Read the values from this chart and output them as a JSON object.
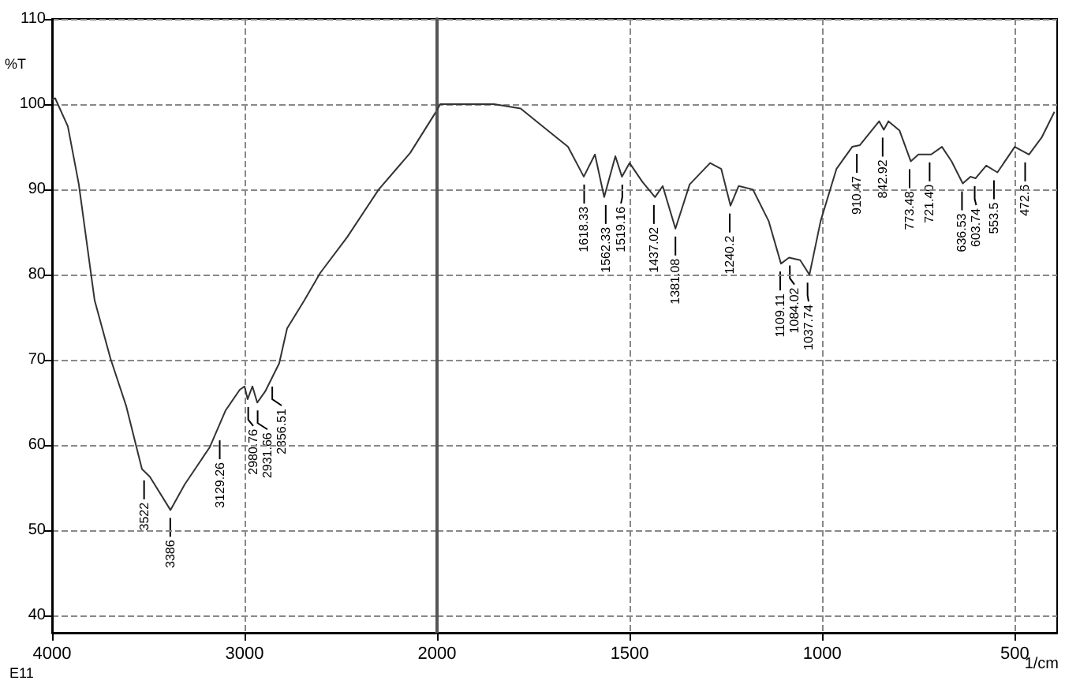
{
  "chart_data": [
    {
      "type": "line",
      "ylabel": "%T",
      "color": "#333333",
      "marker": "none",
      "grid": true,
      "x": [
        4000,
        3984,
        3918,
        3861,
        3779,
        3697,
        3615,
        3533,
        3492,
        3385,
        3311,
        3180,
        3098,
        3025,
        3000,
        2984,
        2959,
        2934,
        2893,
        2820,
        2779,
        2689,
        2607,
        2467,
        2303,
        2139,
        2000
      ],
      "values": [
        100.5,
        100.7,
        97.4,
        90.6,
        77,
        70.2,
        64.6,
        57.2,
        56.3,
        52.4,
        55.4,
        59.8,
        64.1,
        66.5,
        66.9,
        65.4,
        66.9,
        65,
        66.3,
        69.6,
        73.7,
        77,
        80.2,
        84.4,
        90,
        94.3,
        99.3
      ],
      "xlim": [
        4000,
        2000
      ],
      "xticks": [
        4000,
        3000,
        2000
      ],
      "ylim": [
        38,
        110
      ],
      "yticks": [
        40,
        50,
        60,
        70,
        80,
        90,
        100,
        110
      ],
      "annotations": [
        "E11",
        {
          "text": "3522",
          "x": 3522,
          "y": 56.8
        },
        {
          "text": "3386",
          "x": 3386,
          "y": 52.4
        },
        {
          "text": "3129.26",
          "x": 3129,
          "y": 61.5
        },
        {
          "text": "2980.76",
          "x": 2981,
          "y": 65.4
        },
        {
          "text": "2931.66",
          "x": 2932,
          "y": 65
        },
        {
          "text": "2856.51",
          "x": 2856,
          "y": 67.8
        }
      ]
    },
    {
      "type": "line",
      "xlabel": "1/cm",
      "color": "#333333",
      "marker": "none",
      "grid": true,
      "tick_labels": "x",
      "x": [
        2000,
        1992,
        1852,
        1783,
        1742,
        1660,
        1619,
        1590,
        1566,
        1537,
        1520,
        1500,
        1467,
        1434,
        1414,
        1381,
        1344,
        1291,
        1262,
        1238,
        1217,
        1180,
        1139,
        1107,
        1086,
        1057,
        1033,
        1004,
        963,
        922,
        902,
        852,
        840,
        828,
        799,
        770,
        750,
        717,
        689,
        664,
        635,
        615,
        602,
        574,
        545,
        500,
        463,
        430,
        397
      ],
      "values": [
        99.3,
        100,
        100,
        99.5,
        98,
        95,
        91.5,
        94.1,
        89.1,
        93.9,
        91.5,
        93.1,
        90.9,
        89.1,
        90.4,
        85.4,
        90.6,
        93.1,
        92.4,
        88.1,
        90.4,
        90,
        86.3,
        81.3,
        82,
        81.7,
        80,
        86.3,
        92.4,
        95,
        95.2,
        98,
        97,
        98,
        96.9,
        93.3,
        94.1,
        94.1,
        95,
        93.3,
        90.7,
        91.5,
        91.3,
        92.8,
        92,
        95,
        94.1,
        96.1,
        99.1
      ],
      "xlim": [
        2000,
        390
      ],
      "xticks": [
        1500,
        1000,
        500
      ],
      "ylim": [
        38,
        110
      ],
      "yticks": [
        40,
        50,
        60,
        70,
        80,
        90,
        100,
        110
      ],
      "annotations": [
        {
          "text": "1618.33",
          "x": 1618,
          "y": 91.5
        },
        {
          "text": "1562.33",
          "x": 1562,
          "y": 89.1
        },
        {
          "text": "1519.16",
          "x": 1519,
          "y": 91.5
        },
        {
          "text": "1437.02",
          "x": 1437,
          "y": 89.1
        },
        {
          "text": "1381.08",
          "x": 1381,
          "y": 85.4
        },
        {
          "text": "1240.2",
          "x": 1240,
          "y": 88.1
        },
        {
          "text": "1109.11",
          "x": 1109,
          "y": 81.3
        },
        {
          "text": "1084.02",
          "x": 1084,
          "y": 82
        },
        {
          "text": "1037.74",
          "x": 1038,
          "y": 80
        },
        {
          "text": "910.47",
          "x": 910,
          "y": 95.1
        },
        {
          "text": "842.92",
          "x": 843,
          "y": 97
        },
        {
          "text": "773.48",
          "x": 773,
          "y": 93.3
        },
        {
          "text": "721.40",
          "x": 721,
          "y": 94.1
        },
        {
          "text": "636.53",
          "x": 637,
          "y": 90.7
        },
        {
          "text": "603.74",
          "x": 604,
          "y": 91.3
        },
        {
          "text": "553.5",
          "x": 554,
          "y": 92
        },
        {
          "text": "472.6",
          "x": 473,
          "y": 94.1
        }
      ]
    }
  ]
}
